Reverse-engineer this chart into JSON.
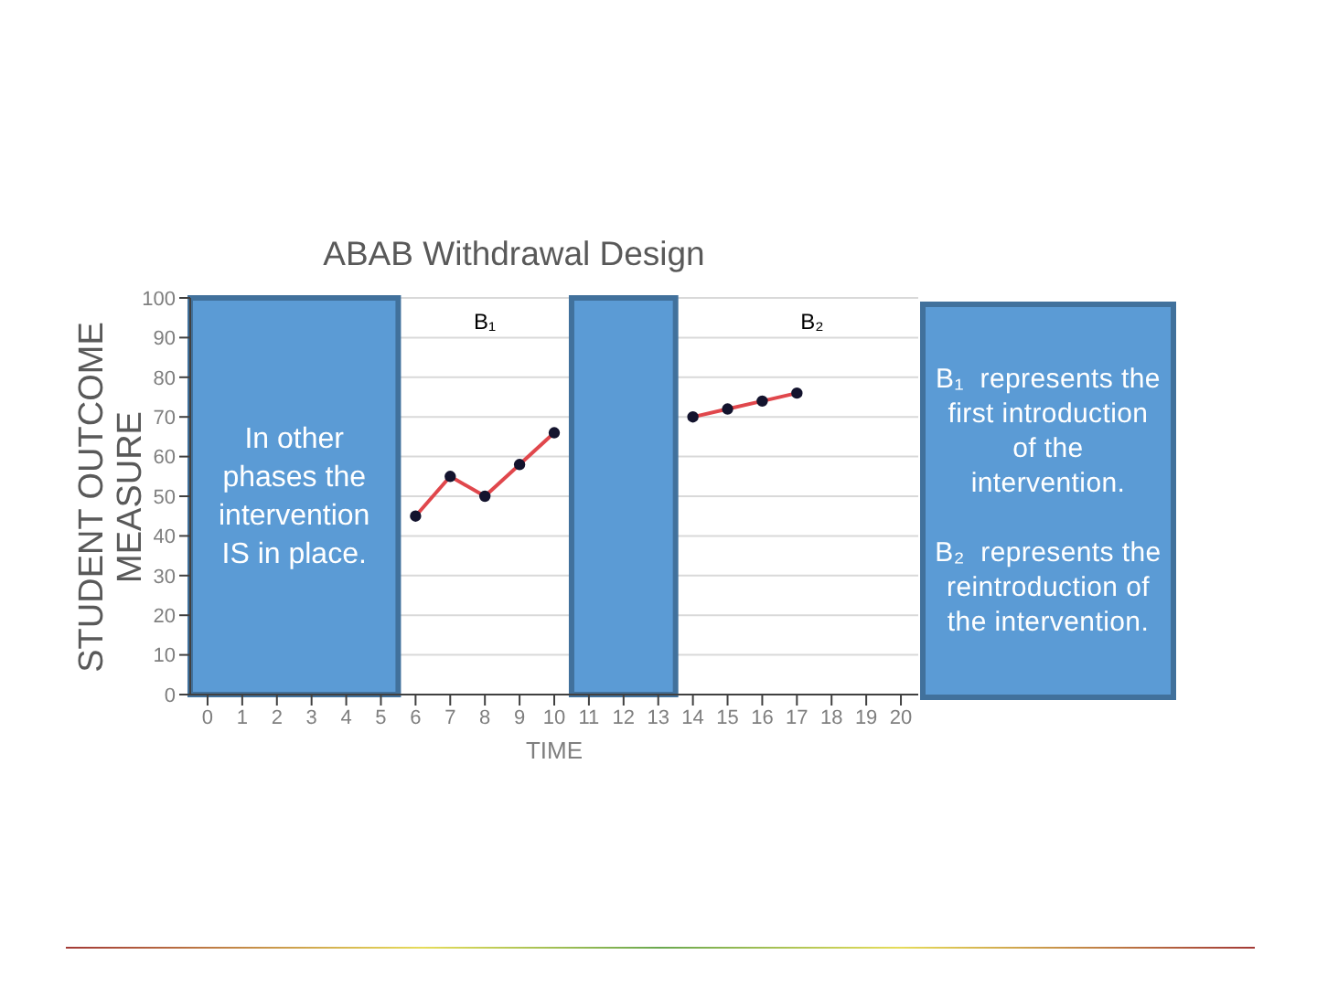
{
  "chart_data": {
    "type": "line",
    "title": "ABAB Withdrawal Design",
    "xlabel": "TIME",
    "ylabel": "STUDENT OUTCOME MEASURE",
    "series": [
      {
        "color": "#e0474c",
        "x": [
          6,
          7,
          8,
          9,
          10
        ],
        "values": [
          45,
          55,
          50,
          58,
          66
        ]
      },
      {
        "color": "#e0474c",
        "x": [
          14,
          15,
          16,
          17
        ],
        "values": [
          70,
          72,
          74,
          76
        ]
      }
    ],
    "xlim": [
      -0.5,
      20.5
    ],
    "xticks": [
      0,
      1,
      2,
      3,
      4,
      5,
      6,
      7,
      8,
      9,
      10,
      11,
      12,
      13,
      14,
      15,
      16,
      17,
      18,
      19,
      20
    ],
    "ylim": [
      0,
      100
    ],
    "yticks": [
      0,
      10,
      20,
      30,
      40,
      50,
      60,
      70,
      80,
      90,
      100
    ],
    "grid": "y",
    "marker": "circle",
    "line_style": "solid",
    "bands": [
      {
        "axis": "x",
        "from": -0.5,
        "to": 5.5,
        "label": "In other phases the intervention IS in place.",
        "color": "#5b9bd5"
      },
      {
        "axis": "x",
        "from": 10.5,
        "to": 13.5,
        "color": "#5b9bd5"
      }
    ],
    "annotations": [
      "B₁",
      "B₂",
      "B₁  represents the first introduction of the intervention.",
      "B₂  represents the reintroduction of the intervention."
    ]
  }
}
